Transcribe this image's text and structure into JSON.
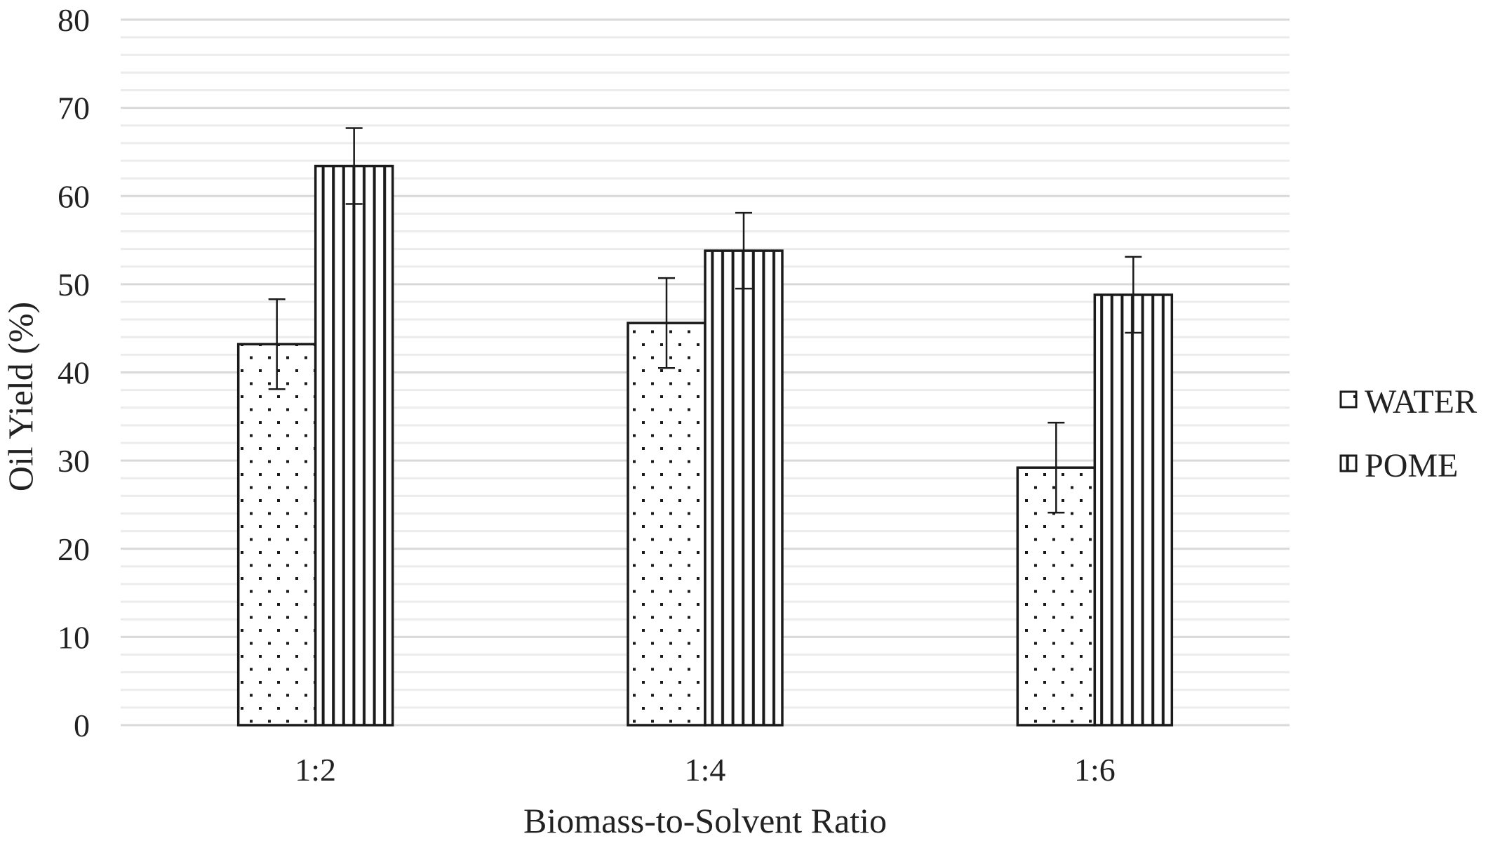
{
  "chart_data": {
    "type": "bar",
    "xlabel": "Biomass-to-Solvent Ratio",
    "ylabel": "Oil Yield (%)",
    "ylim": [
      0,
      80
    ],
    "y_major_step": 10,
    "y_minor_step": 2,
    "grid": true,
    "legend_position": "right",
    "categories": [
      "1:2",
      "1:4",
      "1:6"
    ],
    "series": [
      {
        "name": "WATER",
        "pattern": "dots",
        "values": [
          43.2,
          45.6,
          29.2
        ],
        "errors": [
          5.1,
          5.1,
          5.1
        ]
      },
      {
        "name": "POME",
        "pattern": "vertical-stripes",
        "values": [
          63.4,
          53.8,
          48.8
        ],
        "errors": [
          4.3,
          4.3,
          4.3
        ]
      }
    ],
    "colors": {
      "bar_stroke": "#1a1a1a",
      "bar_fill": "#ffffff",
      "major_grid": "#d9d9d9",
      "minor_grid": "#ececec",
      "text": "#222222"
    }
  }
}
